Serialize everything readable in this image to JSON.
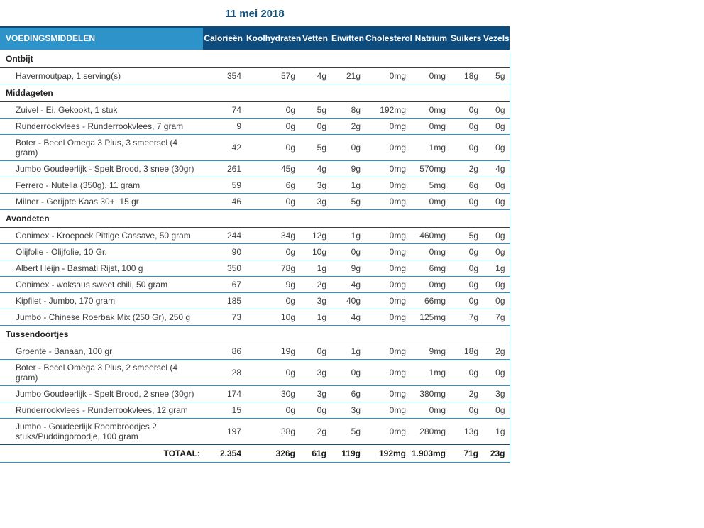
{
  "page": {
    "title": "11 mei 2018"
  },
  "colors": {
    "header_light_blue": "#2E93C9",
    "header_dark_navy": "#0E4C7E",
    "row_border_teal": "#2E93C9",
    "section_border_dark": "#3C3C3C",
    "title_text": "#15537E"
  },
  "table": {
    "food_column_header": "VOEDINGSMIDDELEN",
    "columns": [
      "Calorieën",
      "Koolhydraten",
      "Vetten",
      "Eiwitten",
      "Cholesterol",
      "Natrium",
      "Suikers",
      "Vezels"
    ],
    "sections": [
      {
        "label": "Ontbijt",
        "rows": [
          {
            "name": "Havermoutpap, 1 serving(s)",
            "values": [
              "354",
              "57g",
              "4g",
              "21g",
              "0mg",
              "0mg",
              "18g",
              "5g"
            ]
          }
        ]
      },
      {
        "label": "Middageten",
        "rows": [
          {
            "name": "Zuivel - Ei, Gekookt, 1 stuk",
            "values": [
              "74",
              "0g",
              "5g",
              "8g",
              "192mg",
              "0mg",
              "0g",
              "0g"
            ]
          },
          {
            "name": "Runderrookvlees - Runderrookvlees, 7 gram",
            "values": [
              "9",
              "0g",
              "0g",
              "2g",
              "0mg",
              "0mg",
              "0g",
              "0g"
            ]
          },
          {
            "name": "Boter - Becel Omega 3 Plus, 3 smeersel (4 gram)",
            "values": [
              "42",
              "0g",
              "5g",
              "0g",
              "0mg",
              "1mg",
              "0g",
              "0g"
            ]
          },
          {
            "name": "Jumbo Goudeerlijk - Spelt Brood, 3 snee (30gr)",
            "values": [
              "261",
              "45g",
              "4g",
              "9g",
              "0mg",
              "570mg",
              "2g",
              "4g"
            ]
          },
          {
            "name": "Ferrero - Nutella (350g), 11 gram",
            "values": [
              "59",
              "6g",
              "3g",
              "1g",
              "0mg",
              "5mg",
              "6g",
              "0g"
            ]
          },
          {
            "name": "Milner - Gerijpte Kaas 30+, 15 gr",
            "values": [
              "46",
              "0g",
              "3g",
              "5g",
              "0mg",
              "0mg",
              "0g",
              "0g"
            ]
          }
        ]
      },
      {
        "label": "Avondeten",
        "rows": [
          {
            "name": "Conimex - Kroepoek Pittige Cassave, 50 gram",
            "values": [
              "244",
              "34g",
              "12g",
              "1g",
              "0mg",
              "460mg",
              "5g",
              "0g"
            ]
          },
          {
            "name": "Olijfolie - Olijfolie, 10 Gr.",
            "values": [
              "90",
              "0g",
              "10g",
              "0g",
              "0mg",
              "0mg",
              "0g",
              "0g"
            ]
          },
          {
            "name": "Albert Heijn - Basmati Rijst, 100 g",
            "values": [
              "350",
              "78g",
              "1g",
              "9g",
              "0mg",
              "6mg",
              "0g",
              "1g"
            ]
          },
          {
            "name": "Conimex - woksaus sweet chili, 50 gram",
            "values": [
              "67",
              "9g",
              "2g",
              "4g",
              "0mg",
              "0mg",
              "0g",
              "0g"
            ]
          },
          {
            "name": "Kipfilet - Jumbo, 170 gram",
            "values": [
              "185",
              "0g",
              "3g",
              "40g",
              "0mg",
              "66mg",
              "0g",
              "0g"
            ]
          },
          {
            "name": "Jumbo - Chinese Roerbak Mix (250 Gr), 250 g",
            "values": [
              "73",
              "10g",
              "1g",
              "4g",
              "0mg",
              "125mg",
              "7g",
              "7g"
            ]
          }
        ]
      },
      {
        "label": "Tussendoortjes",
        "rows": [
          {
            "name": "Groente - Banaan, 100 gr",
            "values": [
              "86",
              "19g",
              "0g",
              "1g",
              "0mg",
              "9mg",
              "18g",
              "2g"
            ]
          },
          {
            "name": "Boter - Becel Omega 3 Plus, 2 smeersel (4 gram)",
            "values": [
              "28",
              "0g",
              "3g",
              "0g",
              "0mg",
              "1mg",
              "0g",
              "0g"
            ]
          },
          {
            "name": "Jumbo Goudeerlijk - Spelt Brood, 2 snee (30gr)",
            "values": [
              "174",
              "30g",
              "3g",
              "6g",
              "0mg",
              "380mg",
              "2g",
              "3g"
            ]
          },
          {
            "name": "Runderrookvlees - Runderrookvlees, 12 gram",
            "values": [
              "15",
              "0g",
              "0g",
              "3g",
              "0mg",
              "0mg",
              "0g",
              "0g"
            ]
          },
          {
            "name": "Jumbo - Goudeerlijk Roombroodjes 2 stuks/Puddingbroodje, 100 gram",
            "values": [
              "197",
              "38g",
              "2g",
              "5g",
              "0mg",
              "280mg",
              "13g",
              "1g"
            ]
          }
        ]
      }
    ],
    "total": {
      "label": "TOTAAL:",
      "values": [
        "2.354",
        "326g",
        "61g",
        "119g",
        "192mg",
        "1.903mg",
        "71g",
        "23g"
      ]
    }
  }
}
